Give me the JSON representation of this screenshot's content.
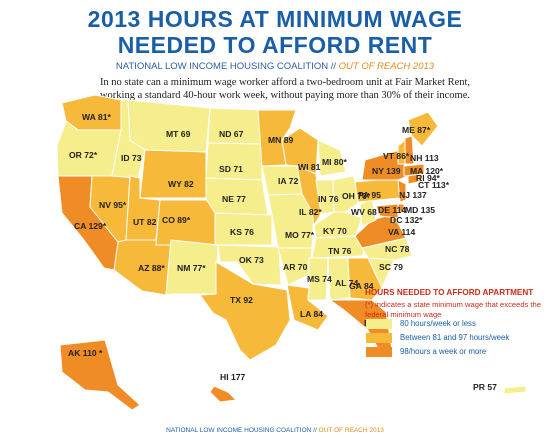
{
  "header": {
    "title_line1": "2013 HOURS AT MINIMUM WAGE",
    "title_line2": "NEEDED TO AFFORD RENT",
    "subtitle_org": "NATIONAL LOW INCOME HOUSING COALITION //",
    "subtitle_src": "OUT OF REACH 2013",
    "intro": "In no state can a minimum wage worker afford a two-bedroom unit at Fair Market Rent, working a standard 40-hour work week, without paying more than 30% of their income."
  },
  "colors": {
    "tier1": "#f6ed8c",
    "tier2": "#f7b93a",
    "tier3": "#ef8c25",
    "border": "#ffffff",
    "title": "#1a5ea8",
    "legend_title": "#cc2a1a"
  },
  "legend": {
    "title": "HOURS NEEDED TO AFFORD APARTMENT",
    "note": "(*) indicates a state minimum wage that exceeds the federal minimum wage",
    "items": [
      {
        "label": "80 hours/week or less",
        "tier": "tier1"
      },
      {
        "label": "Between 81 and 97 hours/week",
        "tier": "tier2"
      },
      {
        "label": "98/hours a week or more",
        "tier": "tier3"
      }
    ]
  },
  "states": [
    {
      "abbr": "WA",
      "hours": "81*",
      "tier": "tier2"
    },
    {
      "abbr": "OR",
      "hours": "72*",
      "tier": "tier1"
    },
    {
      "abbr": "CA",
      "hours": "129*",
      "tier": "tier3"
    },
    {
      "abbr": "NV",
      "hours": "95*",
      "tier": "tier2"
    },
    {
      "abbr": "ID",
      "hours": "73",
      "tier": "tier1"
    },
    {
      "abbr": "MT",
      "hours": "69",
      "tier": "tier1"
    },
    {
      "abbr": "WY",
      "hours": "82",
      "tier": "tier2"
    },
    {
      "abbr": "UT",
      "hours": "82",
      "tier": "tier2"
    },
    {
      "abbr": "AZ",
      "hours": "88*",
      "tier": "tier2"
    },
    {
      "abbr": "CO",
      "hours": "89*",
      "tier": "tier2"
    },
    {
      "abbr": "NM",
      "hours": "77*",
      "tier": "tier1"
    },
    {
      "abbr": "ND",
      "hours": "67",
      "tier": "tier1"
    },
    {
      "abbr": "SD",
      "hours": "71",
      "tier": "tier1"
    },
    {
      "abbr": "NE",
      "hours": "77",
      "tier": "tier1"
    },
    {
      "abbr": "KS",
      "hours": "76",
      "tier": "tier1"
    },
    {
      "abbr": "OK",
      "hours": "73",
      "tier": "tier1"
    },
    {
      "abbr": "TX",
      "hours": "92",
      "tier": "tier2"
    },
    {
      "abbr": "MN",
      "hours": "89",
      "tier": "tier2"
    },
    {
      "abbr": "IA",
      "hours": "72",
      "tier": "tier1"
    },
    {
      "abbr": "MO",
      "hours": "77*",
      "tier": "tier1"
    },
    {
      "abbr": "AR",
      "hours": "70",
      "tier": "tier1"
    },
    {
      "abbr": "LA",
      "hours": "84",
      "tier": "tier2"
    },
    {
      "abbr": "WI",
      "hours": "81",
      "tier": "tier2"
    },
    {
      "abbr": "IL",
      "hours": "82*",
      "tier": "tier2"
    },
    {
      "abbr": "MI",
      "hours": "80*",
      "tier": "tier1"
    },
    {
      "abbr": "IN",
      "hours": "76",
      "tier": "tier1"
    },
    {
      "abbr": "OH",
      "hours": "70*",
      "tier": "tier1"
    },
    {
      "abbr": "KY",
      "hours": "70",
      "tier": "tier1"
    },
    {
      "abbr": "TN",
      "hours": "76",
      "tier": "tier1"
    },
    {
      "abbr": "MS",
      "hours": "74",
      "tier": "tier1"
    },
    {
      "abbr": "AL",
      "hours": "74",
      "tier": "tier1"
    },
    {
      "abbr": "GA",
      "hours": "84",
      "tier": "tier2"
    },
    {
      "abbr": "FL",
      "hours": "98*",
      "tier": "tier3"
    },
    {
      "abbr": "SC",
      "hours": "79",
      "tier": "tier1"
    },
    {
      "abbr": "NC",
      "hours": "78",
      "tier": "tier1"
    },
    {
      "abbr": "VA",
      "hours": "114",
      "tier": "tier3"
    },
    {
      "abbr": "WV",
      "hours": "68",
      "tier": "tier1"
    },
    {
      "abbr": "PA",
      "hours": "95",
      "tier": "tier2"
    },
    {
      "abbr": "NY",
      "hours": "139",
      "tier": "tier3"
    },
    {
      "abbr": "NJ",
      "hours": "137",
      "tier": "tier3"
    },
    {
      "abbr": "DE",
      "hours": "114",
      "tier": "tier3"
    },
    {
      "abbr": "MD",
      "hours": "135",
      "tier": "tier3"
    },
    {
      "abbr": "DC",
      "hours": "132*",
      "tier": "tier3"
    },
    {
      "abbr": "CT",
      "hours": "113*",
      "tier": "tier3"
    },
    {
      "abbr": "RI",
      "hours": "94*",
      "tier": "tier2"
    },
    {
      "abbr": "MA",
      "hours": "120*",
      "tier": "tier3"
    },
    {
      "abbr": "VT",
      "hours": "86*",
      "tier": "tier2"
    },
    {
      "abbr": "NH",
      "hours": "113",
      "tier": "tier3"
    },
    {
      "abbr": "ME",
      "hours": "87*",
      "tier": "tier2"
    },
    {
      "abbr": "AK",
      "hours": "110 *",
      "tier": "tier3"
    },
    {
      "abbr": "HI",
      "hours": "177",
      "tier": "tier3"
    },
    {
      "abbr": "PR",
      "hours": "57",
      "tier": "tier1"
    }
  ],
  "footer": {
    "org": "NATIONAL LOW INCOME HOUSING COALITION //",
    "src": "OUT OF REACH 2013"
  }
}
